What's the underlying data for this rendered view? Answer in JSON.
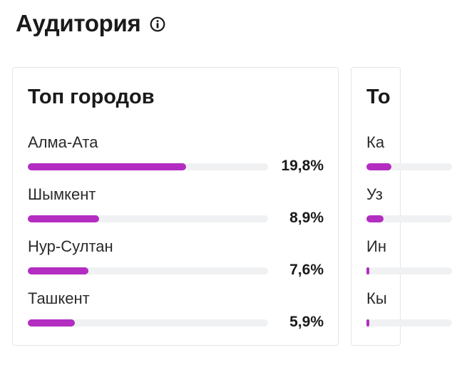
{
  "section": {
    "title": "Аудитория",
    "info_icon": "info-icon"
  },
  "top_cities": {
    "title": "Топ городов",
    "items": [
      {
        "label": "Алма-Ата",
        "value_text": "19,8%",
        "value": 19.8
      },
      {
        "label": "Шымкент",
        "value_text": "8,9%",
        "value": 8.9
      },
      {
        "label": "Нур-Султан",
        "value_text": "7,6%",
        "value": 7.6
      },
      {
        "label": "Ташкент",
        "value_text": "5,9%",
        "value": 5.9
      }
    ]
  },
  "second_card": {
    "title_partial": "То",
    "items": [
      {
        "label_partial": "Ка",
        "value": 29
      },
      {
        "label_partial": "Уз",
        "value": 20
      },
      {
        "label_partial": "Ин",
        "value": 3.5
      },
      {
        "label_partial": "Кы",
        "value": 3
      }
    ]
  },
  "colors": {
    "bar_fill": "#b32dc1",
    "bar_track": "#f0f1f3",
    "card_border": "#e3e5e8",
    "text": "#1a1a1a"
  }
}
